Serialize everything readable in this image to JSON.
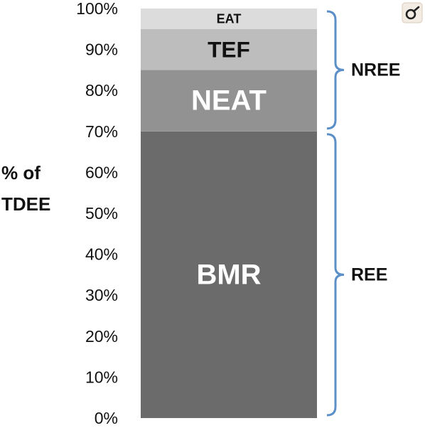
{
  "chart_data": {
    "type": "bar",
    "stacked": true,
    "ylabel": [
      "% of",
      "TDEE"
    ],
    "ylim": [
      0,
      100
    ],
    "yticks": [
      0,
      10,
      20,
      30,
      40,
      50,
      60,
      70,
      80,
      90,
      100
    ],
    "ytick_suffix": "%",
    "grid": false,
    "segments": [
      {
        "name": "BMR",
        "start": 0,
        "end": 70,
        "color": "#6b6b6b",
        "label_color": "#ffffff"
      },
      {
        "name": "NEAT",
        "start": 70,
        "end": 85,
        "color": "#929292",
        "label_color": "#ffffff"
      },
      {
        "name": "TEF",
        "start": 85,
        "end": 95,
        "color": "#bdbdbd",
        "label_color": "#111111"
      },
      {
        "name": "EAT",
        "start": 95,
        "end": 100,
        "color": "#dcdcdc",
        "label_color": "#111111"
      }
    ],
    "groups": [
      {
        "name": "NREE",
        "start": 70,
        "end": 100
      },
      {
        "name": "REE",
        "start": 0,
        "end": 70
      }
    ],
    "bracket_color": "#5b8fc7"
  },
  "corner_icon": "pin-icon"
}
